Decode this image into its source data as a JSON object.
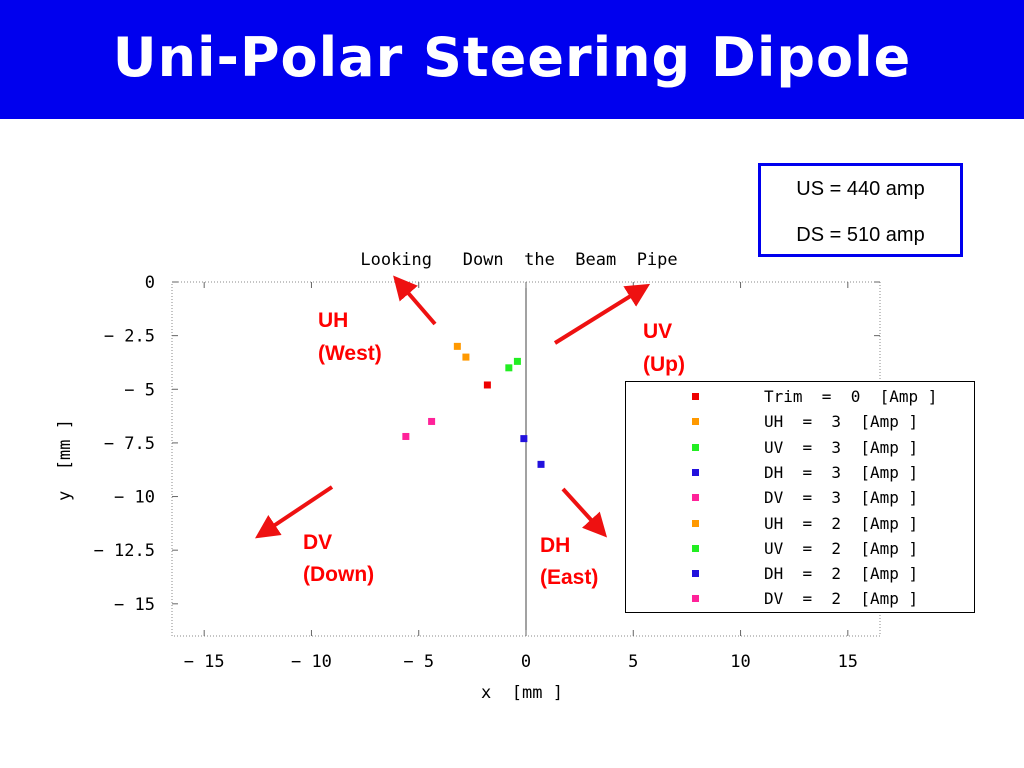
{
  "slide": {
    "title": "Uni-Polar Steering Dipole"
  },
  "currents": {
    "us": "US = 440 amp",
    "ds": "DS = 510 amp"
  },
  "annotations": [
    {
      "id": "uh",
      "line1": "UH",
      "line2": "(West)"
    },
    {
      "id": "uv",
      "line1": "UV",
      "line2": "(Up)"
    },
    {
      "id": "dv",
      "line1": "DV",
      "line2": "(Down)"
    },
    {
      "id": "dh",
      "line1": "DH",
      "line2": "(East)"
    }
  ],
  "colors": {
    "banner": "#0000ee",
    "arrow": "#ff0000",
    "trim": "#ee0000",
    "uh": "#ff9900",
    "uv": "#22ee22",
    "dh": "#2211dd",
    "dv": "#ff2299"
  },
  "chart_data": {
    "type": "scatter",
    "title": "Looking   Down  the  Beam  Pipe",
    "xlabel": "x  [mm ]",
    "ylabel": "y  [mm ]",
    "xlim": [
      -16.5,
      16.5
    ],
    "ylim": [
      -16.5,
      0
    ],
    "xticks": [
      -15,
      -10,
      -5,
      0,
      5,
      10,
      15
    ],
    "yticks": [
      0,
      -2.5,
      -5,
      -7.5,
      -10,
      -12.5,
      -15
    ],
    "xtick_labels": [
      "− 15",
      "− 10",
      "− 5",
      "0",
      "5",
      "10",
      "15"
    ],
    "ytick_labels": [
      "0",
      "− 2.5",
      "− 5",
      "− 7.5",
      "− 10",
      "− 12.5",
      "− 15"
    ],
    "vertical_line_x": 0,
    "grid": false,
    "legend_position": "right",
    "series": [
      {
        "name": "Trim  =  0  [Amp ]",
        "color": "#ee0000",
        "points": [
          [
            -1.8,
            -4.8
          ]
        ]
      },
      {
        "name": "UH  =  3  [Amp ]",
        "color": "#ff9900",
        "points": [
          [
            -2.8,
            -3.5
          ]
        ]
      },
      {
        "name": "UV  =  3  [Amp ]",
        "color": "#22ee22",
        "points": [
          [
            -0.4,
            -3.7
          ]
        ]
      },
      {
        "name": "DH  =  3  [Amp ]",
        "color": "#2211dd",
        "points": [
          [
            0.7,
            -8.5
          ]
        ]
      },
      {
        "name": "DV  =  3  [Amp ]",
        "color": "#ff2299",
        "points": [
          [
            -5.6,
            -7.2
          ]
        ]
      },
      {
        "name": "UH  =  2  [Amp ]",
        "color": "#ff9900",
        "points": [
          [
            -3.2,
            -3.0
          ]
        ]
      },
      {
        "name": "UV  =  2  [Amp ]",
        "color": "#22ee22",
        "points": [
          [
            -0.8,
            -4.0
          ]
        ]
      },
      {
        "name": "DH  =  2  [Amp ]",
        "color": "#2211dd",
        "points": [
          [
            -0.1,
            -7.3
          ]
        ]
      },
      {
        "name": "DV  =  2  [Amp ]",
        "color": "#ff2299",
        "points": [
          [
            -4.4,
            -6.5
          ]
        ]
      }
    ]
  }
}
